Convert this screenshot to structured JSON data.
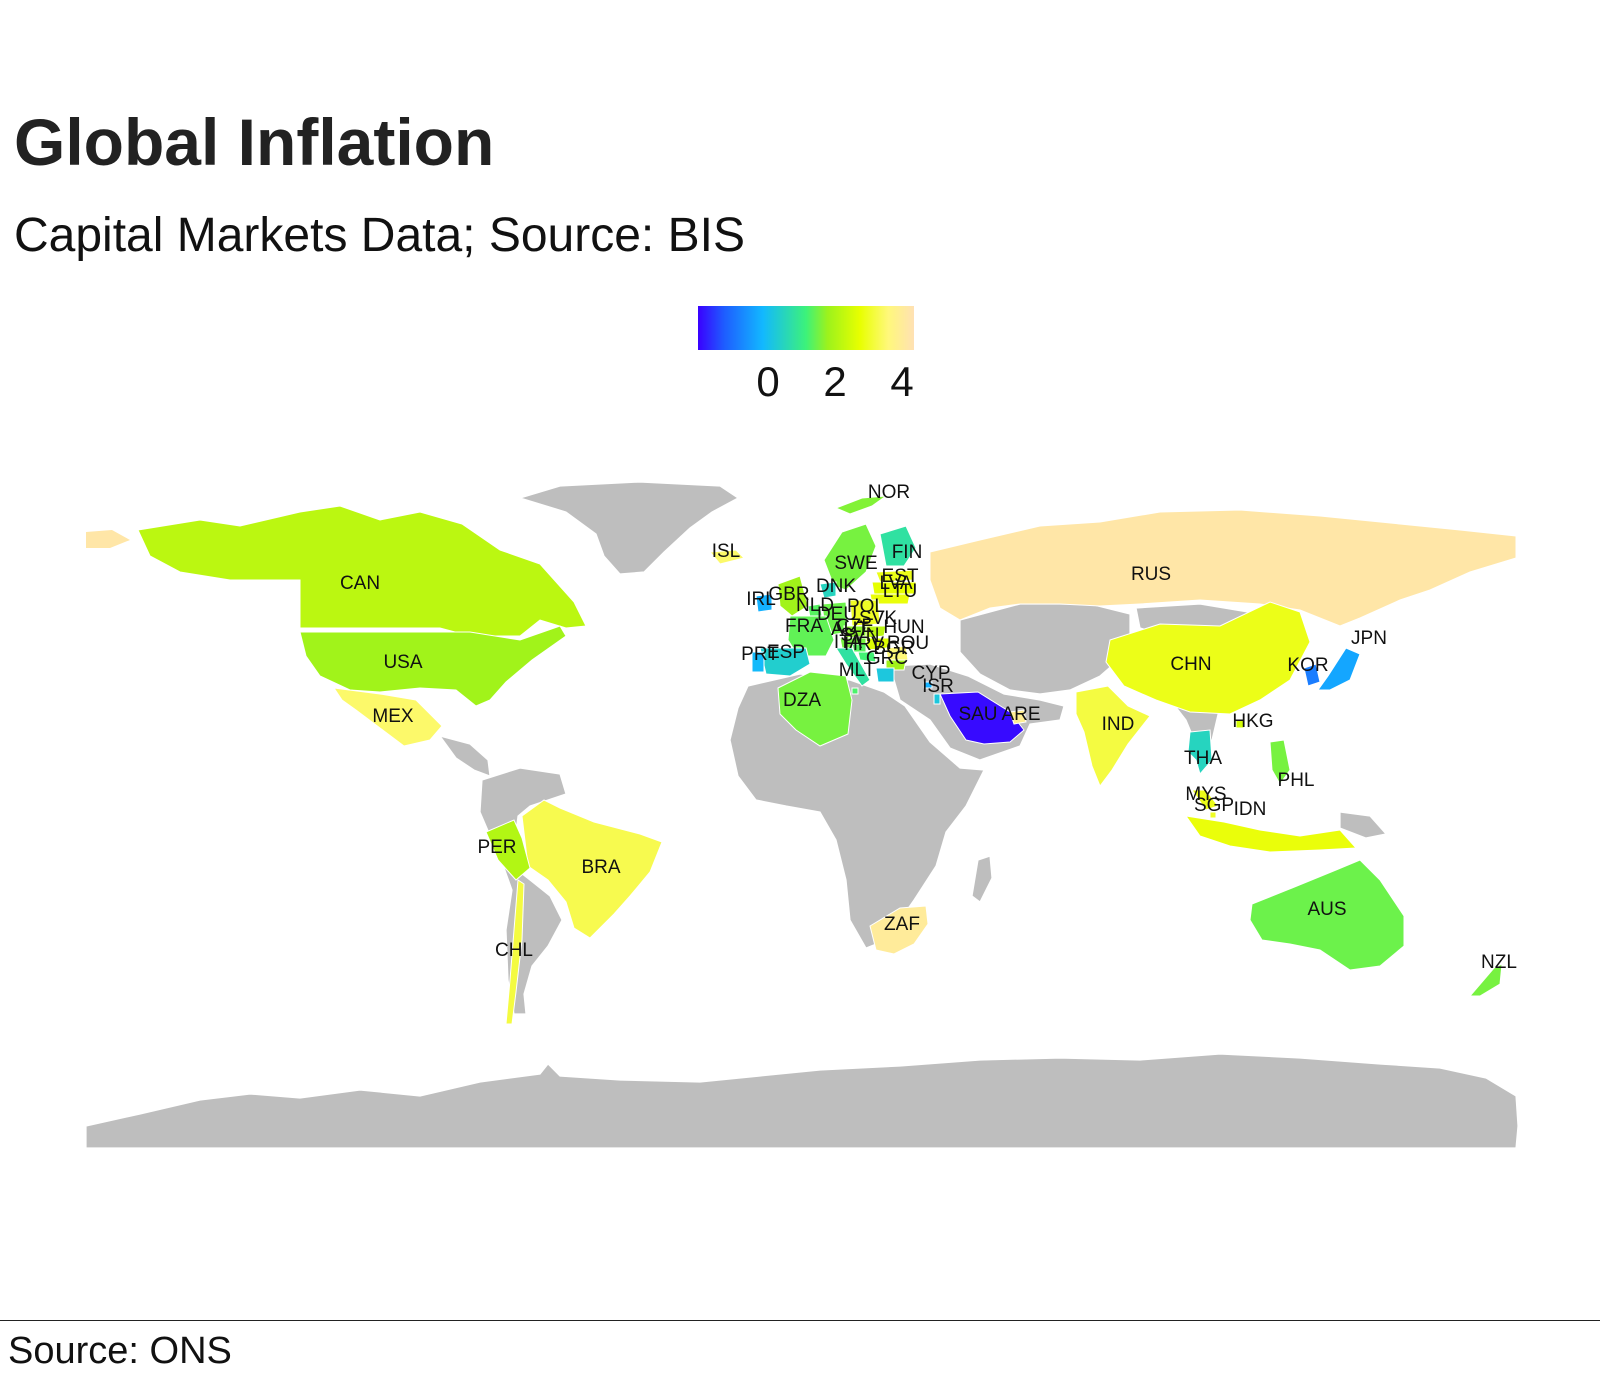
{
  "title": "Global Inflation",
  "subtitle": "Capital Markets Data; Source: BIS",
  "caption": "Source: ONS",
  "legend": {
    "ticks": [
      "0",
      "2",
      "4"
    ],
    "tick_values": [
      0,
      2,
      4
    ],
    "min": -1.2,
    "max": 5.0,
    "colors": [
      "#3a00ff",
      "#1e5cff",
      "#12b8ff",
      "#3cf27a",
      "#9cf21c",
      "#e8ff00",
      "#fff87a",
      "#ffe1b4"
    ]
  },
  "colors": {
    "no_data": "#bebebe",
    "background": "#ffffff"
  },
  "chart_data": {
    "type": "choropleth",
    "metric": "inflation",
    "regions": [
      {
        "code": "CAN",
        "value": 2.7
      },
      {
        "code": "USA",
        "value": 2.4
      },
      {
        "code": "MEX",
        "value": 4.0
      },
      {
        "code": "BRA",
        "value": 3.8
      },
      {
        "code": "PER",
        "value": 2.6
      },
      {
        "code": "CHL",
        "value": 3.7
      },
      {
        "code": "ISL",
        "value": 4.0
      },
      {
        "code": "NOR",
        "value": 2.1
      },
      {
        "code": "SWE",
        "value": 2.0
      },
      {
        "code": "FIN",
        "value": 1.2
      },
      {
        "code": "EST",
        "value": 3.4
      },
      {
        "code": "LVA",
        "value": 3.2
      },
      {
        "code": "LTU",
        "value": 3.3
      },
      {
        "code": "DNK",
        "value": 1.0
      },
      {
        "code": "GBR",
        "value": 2.4
      },
      {
        "code": "IRL",
        "value": 0.5
      },
      {
        "code": "NLD",
        "value": 1.7
      },
      {
        "code": "DEU",
        "value": 1.9
      },
      {
        "code": "POL",
        "value": 3.5
      },
      {
        "code": "CZE",
        "value": 2.2
      },
      {
        "code": "SVK",
        "value": 2.7
      },
      {
        "code": "HUN",
        "value": 3.1
      },
      {
        "code": "AUT",
        "value": 2.0
      },
      {
        "code": "FRA",
        "value": 1.8
      },
      {
        "code": "ESP",
        "value": 0.9
      },
      {
        "code": "PRT",
        "value": 0.6
      },
      {
        "code": "ITA",
        "value": 1.2
      },
      {
        "code": "SVN",
        "value": 1.7
      },
      {
        "code": "HRV",
        "value": 1.5
      },
      {
        "code": "ROU",
        "value": 4.1
      },
      {
        "code": "BGR",
        "value": 2.4
      },
      {
        "code": "GRC",
        "value": 0.8
      },
      {
        "code": "MLT",
        "value": 1.6
      },
      {
        "code": "CYP",
        "value": 0.5
      },
      {
        "code": "ISR",
        "value": 0.8
      },
      {
        "code": "DZA",
        "value": 2.0
      },
      {
        "code": "SAU",
        "value": -1.1
      },
      {
        "code": "ARE",
        "value": 4.5
      },
      {
        "code": "RUS",
        "value": 4.8
      },
      {
        "code": "CHN",
        "value": 3.4
      },
      {
        "code": "IND",
        "value": 3.7
      },
      {
        "code": "HKG",
        "value": 3.0
      },
      {
        "code": "KOR",
        "value": 0.0
      },
      {
        "code": "JPN",
        "value": 0.4
      },
      {
        "code": "THA",
        "value": 1.0
      },
      {
        "code": "MYS",
        "value": 3.4
      },
      {
        "code": "SGP",
        "value": 3.5
      },
      {
        "code": "IDN",
        "value": 3.3
      },
      {
        "code": "PHL",
        "value": 2.0
      },
      {
        "code": "AUS",
        "value": 1.9
      },
      {
        "code": "NZL",
        "value": 2.0
      },
      {
        "code": "ZAF",
        "value": 4.6
      }
    ]
  }
}
